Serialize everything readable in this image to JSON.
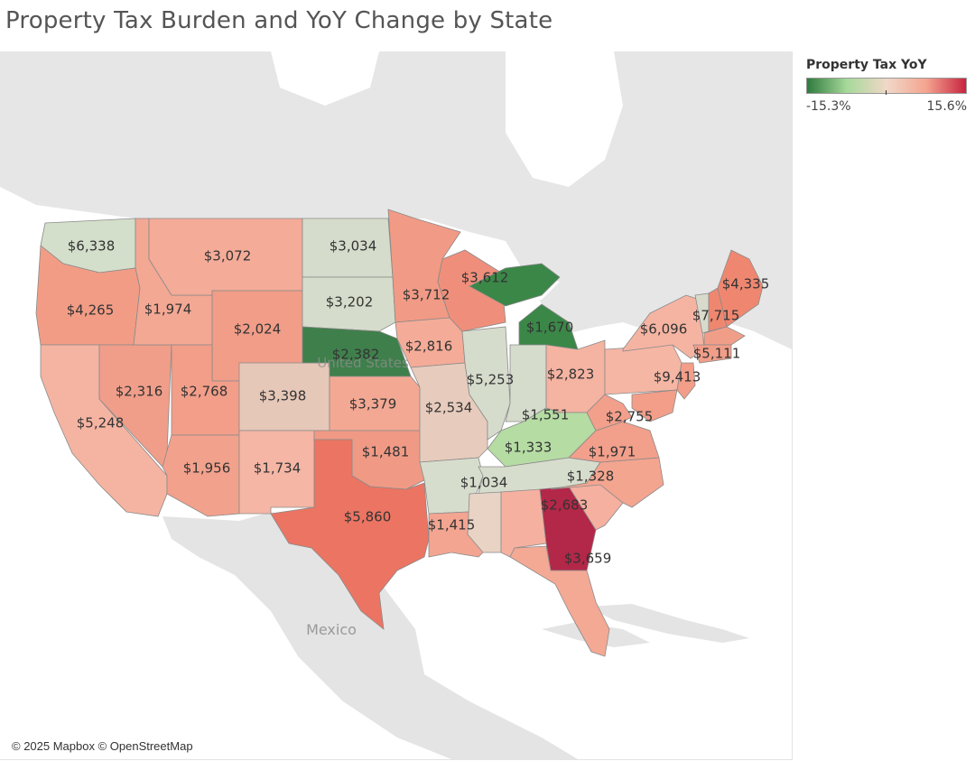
{
  "title": "Property Tax Burden and YoY Change by State",
  "attribution": "© 2025 Mapbox © OpenStreetMap",
  "basemap_labels": {
    "country_us": "United States",
    "country_mexico": "Mexico"
  },
  "legend": {
    "title": "Property Tax YoY",
    "min_label": "-15.3%",
    "max_label": "15.6%",
    "min": -15.3,
    "max": 15.6,
    "colors": [
      "#2f7a3e",
      "#a6d99a",
      "#f0d8c8",
      "#f4a490",
      "#c8243f"
    ]
  },
  "chart_data": {
    "type": "heatmap",
    "title": "Property Tax Burden and YoY Change by State",
    "color_field": "Property Tax YoY",
    "label_field": "Property tax per capita",
    "labels": [
      {
        "value": "$6,338",
        "color": "#d3dfca"
      },
      {
        "value": "$3,072",
        "color": "#f4ab98"
      },
      {
        "value": "$3,034",
        "color": "#d5dccb"
      },
      {
        "value": "$3,712",
        "color": "#f19a85"
      },
      {
        "value": "$4,265",
        "color": "#f29c86"
      },
      {
        "value": "$1,974",
        "color": "#f3a893"
      },
      {
        "value": "$3,202",
        "color": "#d5dccb"
      },
      {
        "value": "$3,612",
        "color": "#ef8f7b"
      },
      {
        "value": "$1,670",
        "color": "#3b8748"
      },
      {
        "value": "$4,335",
        "color": "#ef8770"
      },
      {
        "value": "$7,715",
        "color": "#d8dbcc"
      },
      {
        "value": "$2,024",
        "color": "#f19d88"
      },
      {
        "value": "$2,382",
        "color": "#3f7f4b"
      },
      {
        "value": "$2,816",
        "color": "#f4ac98"
      },
      {
        "value": "$6,096",
        "color": "#f5b4a2"
      },
      {
        "value": "$5,111",
        "color": "#f19e89"
      },
      {
        "value": "$5,253",
        "color": "#d6dccc"
      },
      {
        "value": "$2,823",
        "color": "#f5b3a1"
      },
      {
        "value": "$9,413",
        "color": "#f5b6a4"
      },
      {
        "value": "$2,316",
        "color": "#f09e89"
      },
      {
        "value": "$2,768",
        "color": "#f29e89"
      },
      {
        "value": "$3,398",
        "color": "#e6c8b8"
      },
      {
        "value": "$3,379",
        "color": "#f3a893"
      },
      {
        "value": "$2,534",
        "color": "#e7cbbc"
      },
      {
        "value": "$1,551",
        "color": "#b5dca3"
      },
      {
        "value": "$2,755",
        "color": "#f29f8b"
      },
      {
        "value": "$5,248",
        "color": "#f5b4a2"
      },
      {
        "value": "$1,333",
        "color": "#d7ddcd"
      },
      {
        "value": "$1,971",
        "color": "#f3a590"
      },
      {
        "value": "$1,481",
        "color": "#f09a85"
      },
      {
        "value": "$1,956",
        "color": "#f2a18c"
      },
      {
        "value": "$1,734",
        "color": "#f5b6a5"
      },
      {
        "value": "$1,328",
        "color": "#f5b0a0"
      },
      {
        "value": "$1,034",
        "color": "#e8d3c5"
      },
      {
        "value": "$2,683",
        "color": "#b32748"
      },
      {
        "value": "$5,860",
        "color": "#ec7462"
      },
      {
        "value": "$1,415",
        "color": "#f3a591"
      },
      {
        "value": "$3,659",
        "color": "#f4a995"
      }
    ]
  }
}
